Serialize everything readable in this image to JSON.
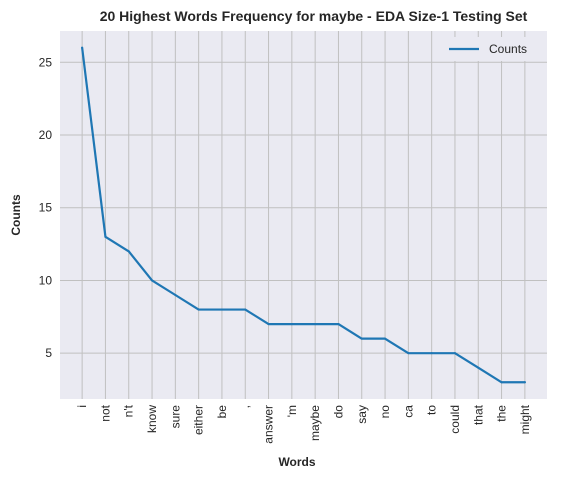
{
  "chart_data": {
    "type": "line",
    "title": "20 Highest Words Frequency for maybe - EDA Size-1 Testing Set",
    "xlabel": "Words",
    "ylabel": "Counts",
    "categories": [
      "i",
      "not",
      "n't",
      "know",
      "sure",
      "either",
      "be",
      ",",
      "answer",
      "'m",
      "maybe",
      "do",
      "say",
      "no",
      "ca",
      "to",
      "could",
      "that",
      "the",
      "might"
    ],
    "series": [
      {
        "name": "Counts",
        "values": [
          26,
          13,
          12,
          10,
          9,
          8,
          8,
          8,
          7,
          7,
          7,
          7,
          6,
          6,
          5,
          5,
          5,
          4,
          3,
          3
        ]
      }
    ],
    "ylim": [
      1.85,
      27.15
    ],
    "yticks": [
      5,
      10,
      15,
      20,
      25
    ],
    "grid": true,
    "legend": "top-right",
    "colors": {
      "line": "#1f77b4",
      "plot_background": "#eaeaf2",
      "grid": "#c0c0c0"
    }
  }
}
